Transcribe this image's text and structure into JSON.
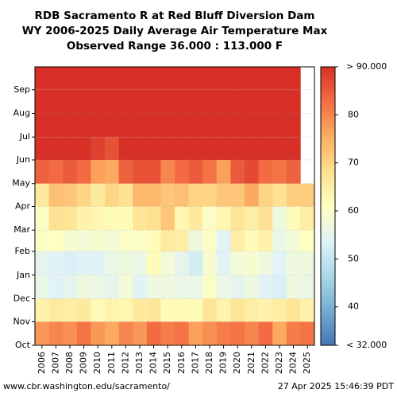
{
  "chart_data": {
    "type": "heatmap",
    "title": [
      "RDB Sacramento R at Red Bluff Diversion Dam",
      "WY 2006-2025 Daily Average Air Temperature Max",
      "Observed Range 36.000 : 113.000 F"
    ],
    "categories": [
      "2006",
      "2007",
      "2008",
      "2009",
      "2010",
      "2011",
      "2012",
      "2013",
      "2014",
      "2015",
      "2016",
      "2017",
      "2018",
      "2019",
      "2020",
      "2021",
      "2022",
      "2023",
      "2024",
      "2025"
    ],
    "ylim": [
      0,
      365
    ],
    "yticks": [
      {
        "value": 0,
        "label": "Oct"
      },
      {
        "value": 31,
        "label": "Nov"
      },
      {
        "value": 61,
        "label": "Dec"
      },
      {
        "value": 92,
        "label": "Jan"
      },
      {
        "value": 123,
        "label": "Feb"
      },
      {
        "value": 151,
        "label": "Mar"
      },
      {
        "value": 182,
        "label": "Apr"
      },
      {
        "value": 212,
        "label": "May"
      },
      {
        "value": 243,
        "label": "Jun"
      },
      {
        "value": 273,
        "label": "Jul"
      },
      {
        "value": 304,
        "label": "Aug"
      },
      {
        "value": 335,
        "label": "Sep"
      }
    ],
    "grid": true,
    "values": [
      [
        78,
        64,
        56,
        55,
        60,
        60,
        66,
        84,
        94,
        102,
        95,
        90
      ],
      [
        80,
        66,
        54,
        54,
        61,
        68,
        73,
        83,
        93,
        100,
        97,
        91
      ],
      [
        79,
        65,
        55,
        53,
        59,
        67,
        72,
        85,
        95,
        101,
        97,
        94
      ],
      [
        82,
        66,
        57,
        54,
        58,
        64,
        70,
        83,
        91,
        101,
        98,
        92
      ],
      [
        78,
        62,
        56,
        54,
        59,
        63,
        66,
        77,
        88,
        98,
        95,
        90
      ],
      [
        76,
        64,
        55,
        56,
        58,
        62,
        70,
        76,
        86,
        97,
        96,
        92
      ],
      [
        80,
        63,
        58,
        57,
        60,
        62,
        68,
        84,
        92,
        99,
        100,
        93
      ],
      [
        78,
        66,
        54,
        56,
        60,
        67,
        74,
        86,
        95,
        102,
        97,
        91
      ],
      [
        83,
        67,
        57,
        62,
        62,
        68,
        74,
        86,
        94,
        101,
        97,
        93
      ],
      [
        81,
        62,
        57,
        58,
        66,
        72,
        72,
        80,
        96,
        99,
        99,
        93
      ],
      [
        82,
        62,
        56,
        55,
        65,
        63,
        73,
        83,
        94,
        98,
        97,
        92
      ],
      [
        77,
        62,
        56,
        52,
        57,
        66,
        70,
        85,
        95,
        102,
        100,
        94
      ],
      [
        79,
        67,
        60,
        59,
        60,
        60,
        70,
        82,
        95,
        104,
        100,
        92
      ],
      [
        81,
        64,
        56,
        54,
        54,
        63,
        72,
        77,
        92,
        99,
        98,
        93
      ],
      [
        82,
        67,
        55,
        58,
        65,
        67,
        72,
        85,
        93,
        99,
        100,
        95
      ],
      [
        80,
        65,
        57,
        59,
        62,
        65,
        76,
        87,
        97,
        104,
        98,
        92
      ],
      [
        83,
        64,
        54,
        57,
        64,
        68,
        70,
        83,
        96,
        99,
        99,
        96
      ],
      [
        76,
        65,
        53,
        54,
        56,
        57,
        68,
        82,
        90,
        101,
        102,
        91
      ],
      [
        81,
        67,
        57,
        57,
        58,
        62,
        71,
        84,
        97,
        104,
        98,
        94
      ],
      [
        82,
        64,
        56,
        57,
        61,
        65,
        71,
        null,
        null,
        null,
        null,
        null
      ]
    ],
    "clim": [
      32,
      90
    ],
    "cticks": [
      {
        "value": 32,
        "label": "< 32.000"
      },
      40,
      50,
      60,
      70,
      80,
      {
        "value": 90,
        "label": "> 90.000"
      }
    ],
    "colormap": [
      "#4575b4",
      "#74add1",
      "#abd9e9",
      "#e0f3f8",
      "#ffffbf",
      "#fee090",
      "#fdae61",
      "#f46d43",
      "#d73027"
    ],
    "footer_left": "www.cbr.washington.edu/sacramento/",
    "footer_right": "27 Apr 2025 15:46:39 PDT"
  }
}
